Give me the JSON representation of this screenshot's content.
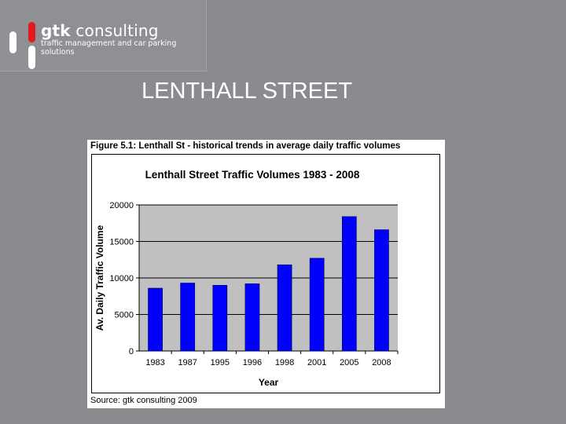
{
  "logo": {
    "name_bold": "gtk",
    "name_rest": " consulting",
    "tagline": "traffic management and car parking solutions",
    "icon": "gtk-bars-logo-icon",
    "colors": {
      "accent": "#e3191f",
      "bar": "#ffffff"
    }
  },
  "slide": {
    "title": "LENTHALL STREET"
  },
  "figure": {
    "caption": "Figure 5.1:  Lenthall St - historical trends in average daily traffic volumes",
    "source": "Source:  gtk consulting 2009"
  },
  "chart_data": {
    "type": "bar",
    "title": "Lenthall Street Traffic Volumes 1983 - 2008",
    "xlabel": "Year",
    "ylabel": "Av. Daily Traffic Volume",
    "categories": [
      "1983",
      "1987",
      "1995",
      "1996",
      "1998",
      "2001",
      "2005",
      "2008"
    ],
    "values": [
      8600,
      9300,
      9000,
      9200,
      11800,
      12700,
      18400,
      16600
    ],
    "ylim": [
      0,
      20000
    ],
    "yticks": [
      0,
      5000,
      10000,
      15000,
      20000
    ],
    "grid": true,
    "legend": "none",
    "colors": {
      "bar": "#0000ff",
      "plot_area": "#c0c0c0",
      "gridline": "#000000"
    }
  }
}
